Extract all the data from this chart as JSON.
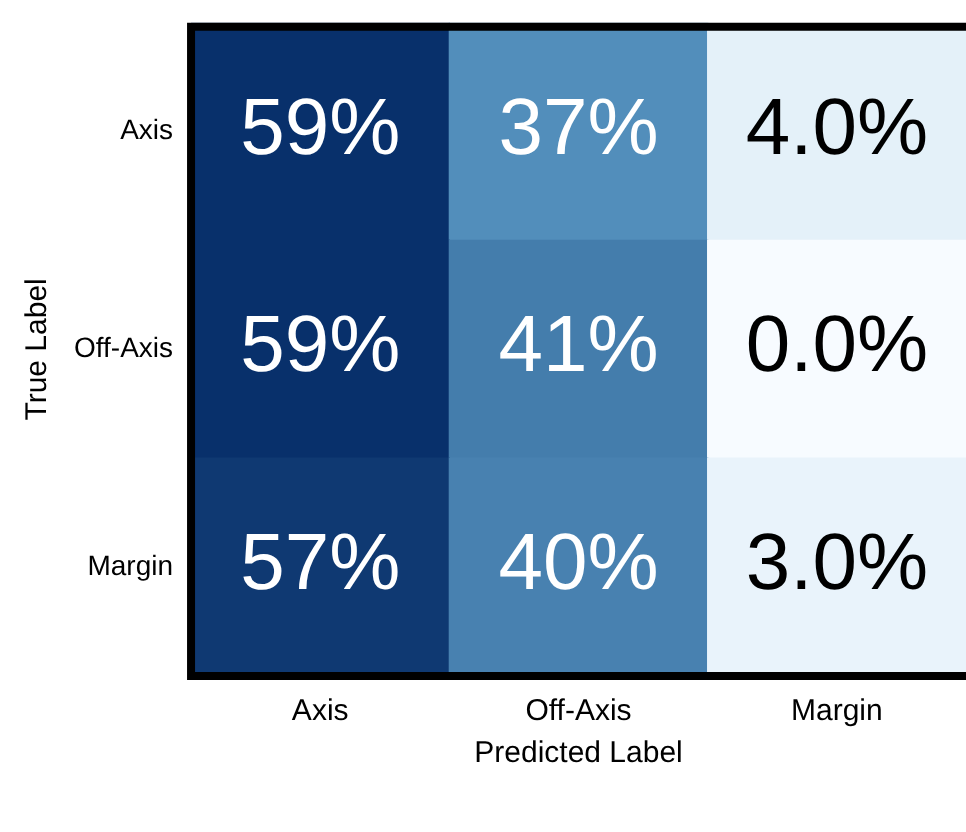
{
  "chart_data": {
    "type": "heatmap",
    "xlabel": "Predicted Label",
    "ylabel": "True Label",
    "categories": [
      "Axis",
      "Off-Axis",
      "Margin"
    ],
    "y_categories": [
      "Axis",
      "Off-Axis",
      "Margin"
    ],
    "cells": [
      [
        59,
        37,
        4.0
      ],
      [
        59,
        41,
        0.0
      ],
      [
        57,
        40,
        3.0
      ]
    ],
    "cell_labels": [
      [
        "59%",
        "37%",
        "4.0%"
      ],
      [
        "59%",
        "41%",
        "0.0%"
      ],
      [
        "57%",
        "40%",
        "3.0%"
      ]
    ]
  }
}
